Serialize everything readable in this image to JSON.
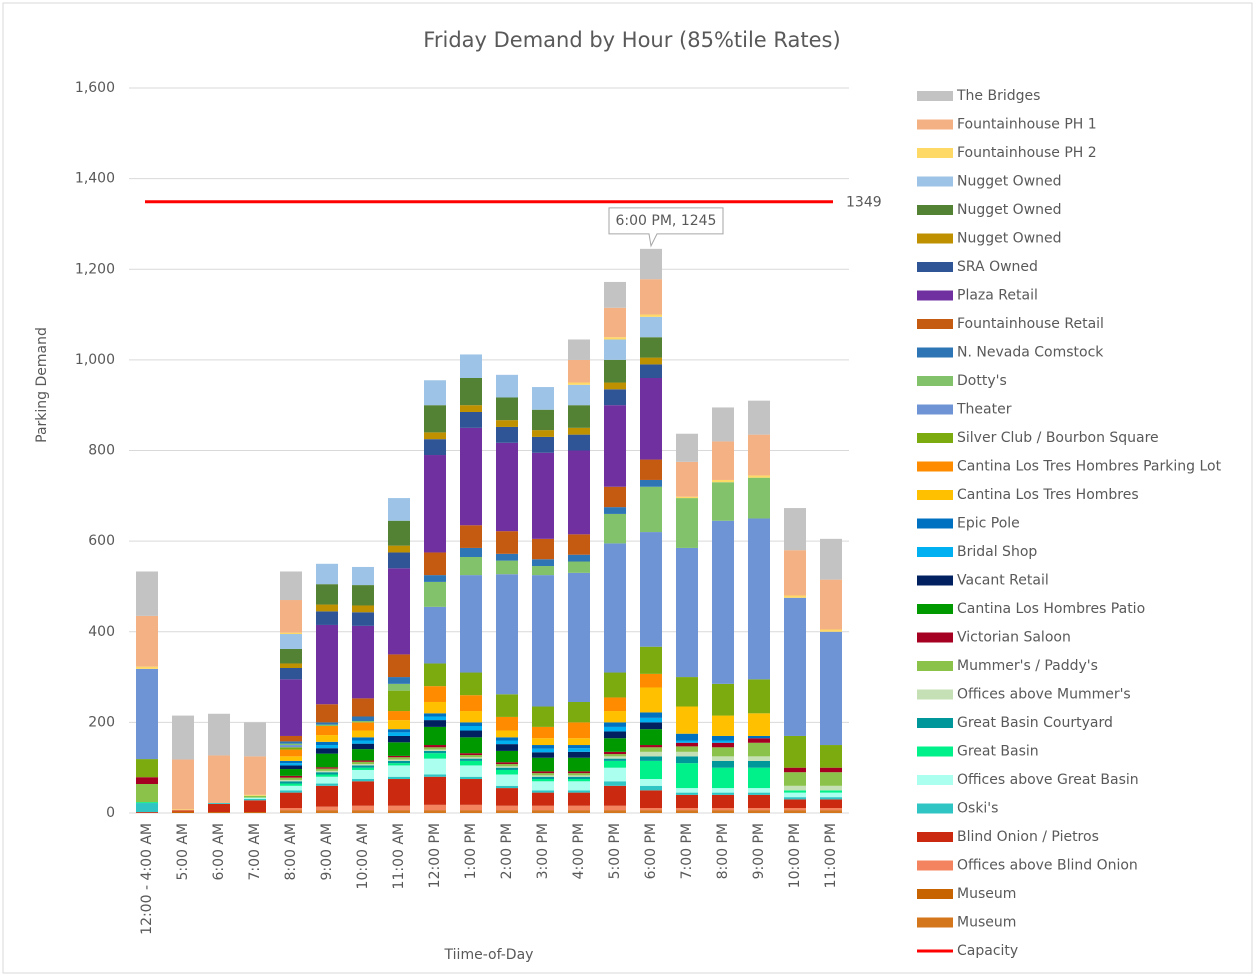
{
  "chart_data": {
    "type": "stacked-bar",
    "title": "Friday Demand by Hour (85%tile Rates)",
    "y_label": "Parking Demand",
    "x_label": "Tiime-of-Day",
    "categories": [
      "12:00 - 4:00 AM",
      "5:00 AM",
      "6:00 AM",
      "7:00 AM",
      "8:00 AM",
      "9:00 AM",
      "10:00 AM",
      "11:00 AM",
      "12:00 PM",
      "1:00 PM",
      "2:00 PM",
      "3:00 PM",
      "4:00 PM",
      "5:00 PM",
      "6:00 PM",
      "7:00 PM",
      "8:00 PM",
      "9:00 PM",
      "10:00 PM",
      "11:00 PM"
    ],
    "ylim": [
      0,
      1600
    ],
    "yticks": [
      0,
      200,
      400,
      600,
      800,
      {
        "value": 1000,
        "label": "1,000"
      },
      {
        "value": 1200,
        "label": "1,200"
      },
      {
        "value": 1400,
        "label": "1,400"
      },
      {
        "value": 1600,
        "label": "1,600"
      }
    ],
    "grid": true,
    "legend": "right",
    "annotation": "6:00 PM, 1245",
    "series": [
      {
        "name": "The Bridges",
        "color": "#c3c3c3",
        "values": [
          98,
          97,
          92,
          75,
          63,
          0,
          0,
          0,
          0,
          0,
          0,
          0,
          45,
          57,
          67,
          62,
          75,
          75,
          93,
          90
        ]
      },
      {
        "name": "Fountainhouse PH 1",
        "color": "#f4b183",
        "values": [
          112,
          110,
          105,
          85,
          72,
          0,
          0,
          0,
          0,
          0,
          0,
          0,
          50,
          65,
          78,
          77,
          85,
          90,
          100,
          110
        ]
      },
      {
        "name": "Fountainhouse PH 2",
        "color": "#ffd966",
        "values": [
          5,
          2,
          0,
          2,
          3,
          0,
          0,
          0,
          0,
          0,
          0,
          0,
          5,
          5,
          5,
          3,
          5,
          5,
          5,
          5
        ]
      },
      {
        "name": "Nugget Owned",
        "color": "#9dc3e6",
        "values": [
          0,
          0,
          0,
          0,
          33,
          45,
          40,
          50,
          55,
          52,
          50,
          50,
          45,
          45,
          45,
          0,
          0,
          0,
          0,
          0
        ]
      },
      {
        "name": "Nugget Owned",
        "color": "#548235",
        "values": [
          0,
          0,
          0,
          0,
          32,
          45,
          45,
          55,
          60,
          60,
          50,
          45,
          50,
          50,
          45,
          0,
          0,
          0,
          0,
          0
        ]
      },
      {
        "name": "Nugget Owned",
        "color": "#bf9000",
        "values": [
          0,
          0,
          0,
          0,
          10,
          15,
          15,
          15,
          15,
          15,
          15,
          15,
          15,
          15,
          15,
          0,
          0,
          0,
          0,
          0
        ]
      },
      {
        "name": "SRA Owned",
        "color": "#2f5597",
        "values": [
          0,
          0,
          0,
          0,
          25,
          30,
          30,
          35,
          35,
          35,
          35,
          35,
          35,
          35,
          30,
          0,
          0,
          0,
          0,
          0
        ]
      },
      {
        "name": "Plaza Retail",
        "color": "#7030a0",
        "values": [
          0,
          0,
          0,
          0,
          125,
          175,
          160,
          190,
          215,
          215,
          195,
          190,
          185,
          180,
          180,
          0,
          0,
          0,
          0,
          0
        ]
      },
      {
        "name": "Fountainhouse Retail",
        "color": "#c55a11",
        "values": [
          0,
          0,
          0,
          0,
          12,
          40,
          40,
          50,
          50,
          50,
          50,
          45,
          45,
          45,
          45,
          0,
          0,
          0,
          0,
          0
        ]
      },
      {
        "name": "N. Nevada Comstock",
        "color": "#2e75b6",
        "values": [
          0,
          0,
          0,
          0,
          5,
          5,
          10,
          15,
          15,
          20,
          15,
          15,
          15,
          15,
          15,
          0,
          0,
          0,
          0,
          0
        ]
      },
      {
        "name": "Dotty's",
        "color": "#82c26a",
        "values": [
          0,
          0,
          0,
          0,
          3,
          3,
          3,
          15,
          55,
          40,
          30,
          20,
          25,
          65,
          100,
          110,
          85,
          90,
          0,
          0
        ]
      },
      {
        "name": "Theater",
        "color": "#6f94d6",
        "values": [
          199,
          0,
          0,
          0,
          5,
          0,
          0,
          0,
          125,
          215,
          265,
          290,
          285,
          285,
          253,
          285,
          360,
          355,
          305,
          250
        ]
      },
      {
        "name": "Silver Club / Bourbon Square",
        "color": "#7cab10",
        "values": [
          40,
          0,
          0,
          0,
          5,
          0,
          0,
          45,
          50,
          50,
          50,
          45,
          45,
          55,
          60,
          65,
          70,
          75,
          70,
          50
        ]
      },
      {
        "name": "Cantina Los Tres Hombres Parking Lot",
        "color": "#ff8c00",
        "values": [
          0,
          0,
          0,
          0,
          15,
          20,
          18,
          20,
          35,
          35,
          30,
          25,
          35,
          30,
          30,
          0,
          0,
          0,
          0,
          0
        ]
      },
      {
        "name": "Cantina Los Tres Hombres",
        "color": "#ffc000",
        "values": [
          0,
          0,
          0,
          0,
          10,
          15,
          15,
          20,
          25,
          25,
          15,
          15,
          15,
          25,
          55,
          60,
          45,
          50,
          0,
          0
        ]
      },
      {
        "name": "Epic Pole",
        "color": "#0070c0",
        "values": [
          0,
          0,
          0,
          0,
          5,
          7,
          7,
          7,
          7,
          8,
          7,
          8,
          7,
          10,
          12,
          15,
          10,
          5,
          0,
          0
        ]
      },
      {
        "name": "Bridal Shop",
        "color": "#00b0f0",
        "values": [
          0,
          0,
          0,
          0,
          5,
          7,
          7,
          8,
          8,
          10,
          8,
          8,
          8,
          10,
          10,
          5,
          5,
          0,
          0,
          0
        ]
      },
      {
        "name": "Vacant Retail",
        "color": "#002060",
        "values": [
          0,
          0,
          0,
          0,
          8,
          12,
          12,
          14,
          15,
          15,
          15,
          12,
          13,
          15,
          15,
          0,
          0,
          0,
          0,
          0
        ]
      },
      {
        "name": "Cantina Los Hombres Patio",
        "color": "#009900",
        "values": [
          0,
          0,
          0,
          0,
          15,
          30,
          25,
          30,
          40,
          35,
          25,
          30,
          30,
          30,
          35,
          0,
          0,
          0,
          0,
          0
        ]
      },
      {
        "name": "Victorian Saloon",
        "color": "#a50021",
        "values": [
          15,
          0,
          0,
          0,
          4,
          3,
          3,
          3,
          5,
          4,
          4,
          4,
          4,
          5,
          5,
          8,
          10,
          10,
          10,
          10
        ]
      },
      {
        "name": "Mummer's / Paddy's",
        "color": "#8bc34a",
        "values": [
          40,
          0,
          0,
          4,
          5,
          5,
          5,
          5,
          5,
          5,
          5,
          5,
          5,
          5,
          10,
          12,
          20,
          30,
          30,
          30
        ]
      },
      {
        "name": "Offices above Mummer's",
        "color": "#c5e0b4",
        "values": [
          0,
          0,
          0,
          0,
          3,
          3,
          3,
          3,
          3,
          3,
          3,
          3,
          3,
          5,
          10,
          10,
          10,
          10,
          10,
          10
        ]
      },
      {
        "name": "Great Basin Courtyard",
        "color": "#00979a",
        "values": [
          0,
          0,
          0,
          0,
          5,
          5,
          5,
          5,
          5,
          5,
          5,
          5,
          5,
          5,
          10,
          15,
          15,
          15,
          0,
          0
        ]
      },
      {
        "name": "Great Basin",
        "color": "#00f08a",
        "values": [
          2,
          0,
          0,
          0,
          5,
          5,
          5,
          5,
          12,
          10,
          10,
          5,
          5,
          15,
          40,
          55,
          45,
          45,
          5,
          5
        ]
      },
      {
        "name": "Offices above Great Basin",
        "color": "#aaffee",
        "values": [
          0,
          0,
          0,
          3,
          10,
          15,
          20,
          25,
          35,
          25,
          25,
          20,
          20,
          30,
          15,
          10,
          10,
          10,
          10,
          10
        ]
      },
      {
        "name": "Oski's",
        "color": "#30c5c5",
        "values": [
          20,
          0,
          2,
          3,
          5,
          5,
          5,
          5,
          5,
          5,
          5,
          5,
          5,
          10,
          10,
          5,
          5,
          5,
          5,
          5
        ]
      },
      {
        "name": "Blind Onion / Pietros",
        "color": "#cc2a10",
        "values": [
          2,
          3,
          18,
          26,
          34,
          46,
          54,
          59,
          62,
          57,
          39,
          29,
          29,
          44,
          39,
          29,
          29,
          29,
          19,
          19
        ]
      },
      {
        "name": "Offices above Blind Onion",
        "color": "#f4845f",
        "values": [
          0,
          0,
          0,
          0,
          5,
          8,
          10,
          10,
          12,
          12,
          10,
          10,
          10,
          10,
          5,
          5,
          5,
          5,
          5,
          5
        ]
      },
      {
        "name": "Museum",
        "color": "#c86400",
        "values": [
          0,
          3,
          2,
          2,
          3,
          3,
          3,
          3,
          3,
          3,
          3,
          3,
          3,
          3,
          3,
          3,
          3,
          3,
          3,
          3
        ]
      },
      {
        "name": "Museum",
        "color": "#d4761c",
        "values": [
          0,
          0,
          0,
          0,
          3,
          3,
          3,
          3,
          3,
          3,
          3,
          3,
          3,
          3,
          3,
          3,
          3,
          3,
          3,
          3
        ]
      }
    ],
    "capacity": {
      "name": "Capacity",
      "color": "#ff0000",
      "value": 1349
    }
  }
}
